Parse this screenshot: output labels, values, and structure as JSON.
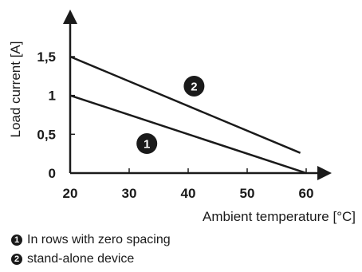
{
  "chart_data": {
    "type": "line",
    "xlabel": "Ambient temperature [°C]",
    "ylabel": "Load current [A]",
    "xlim": [
      20,
      60
    ],
    "ylim": [
      0,
      1.5
    ],
    "x_ticks": [
      20,
      30,
      40,
      50,
      60
    ],
    "y_ticks": [
      {
        "value": 0,
        "label": "0"
      },
      {
        "value": 0.5,
        "label": "0,5"
      },
      {
        "value": 1,
        "label": "1"
      },
      {
        "value": 1.5,
        "label": "1,5"
      }
    ],
    "series": [
      {
        "marker": "1",
        "x": [
          20,
          60
        ],
        "y": [
          1.0,
          0.0
        ],
        "marker_pos": {
          "x": 33,
          "y": 0.38
        }
      },
      {
        "marker": "2",
        "x": [
          20,
          59
        ],
        "y": [
          1.5,
          0.26
        ],
        "marker_pos": {
          "x": 41,
          "y": 1.12
        }
      }
    ],
    "grid": false
  },
  "legend": [
    {
      "num": "1",
      "text": "In rows with zero spacing"
    },
    {
      "num": "2",
      "text": "stand-alone device"
    }
  ]
}
